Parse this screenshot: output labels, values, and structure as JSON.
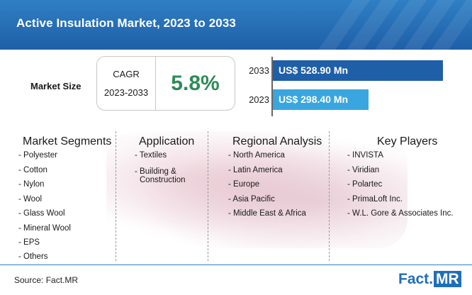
{
  "title": "Active Insulation Market, 2023 to 2033",
  "market_size": {
    "label": "Market Size",
    "cagr_label": "CAGR",
    "cagr_period": "2023-2033",
    "cagr_value": "5.8%"
  },
  "chart_data": {
    "type": "bar",
    "orientation": "horizontal",
    "categories": [
      "2033",
      "2023"
    ],
    "values": [
      528.9,
      298.4
    ],
    "value_labels": [
      "US$ 528.90 Mn",
      "US$ 298.40 Mn"
    ],
    "colors": [
      "#1f5fa8",
      "#3aa6df"
    ],
    "unit": "US$ Mn"
  },
  "segments": {
    "market_segments": {
      "heading": "Market Segments",
      "items": [
        "- Polyester",
        "- Cotton",
        "- Nylon",
        "- Wool",
        "- Glass Wool",
        "- Mineral Wool",
        "- EPS",
        "- Others"
      ]
    },
    "application": {
      "heading": "Application",
      "items": [
        "- Textiles",
        "- Building &",
        "Construction"
      ]
    },
    "regional_analysis": {
      "heading": "Regional Analysis",
      "items": [
        "- North America",
        "- Latin America",
        "- Europe",
        "- Asia Pacific",
        "- Middle East & Africa"
      ]
    },
    "key_players": {
      "heading": "Key Players",
      "items": [
        "- INVISTA",
        "- Viridian",
        "- Polartec",
        "- PrimaLoft Inc.",
        "- W.L. Gore & Associates Inc."
      ]
    }
  },
  "footer": {
    "source": "Source: Fact.MR",
    "logo_fact": "Fact",
    "logo_dot": ".",
    "logo_mr": "MR"
  }
}
